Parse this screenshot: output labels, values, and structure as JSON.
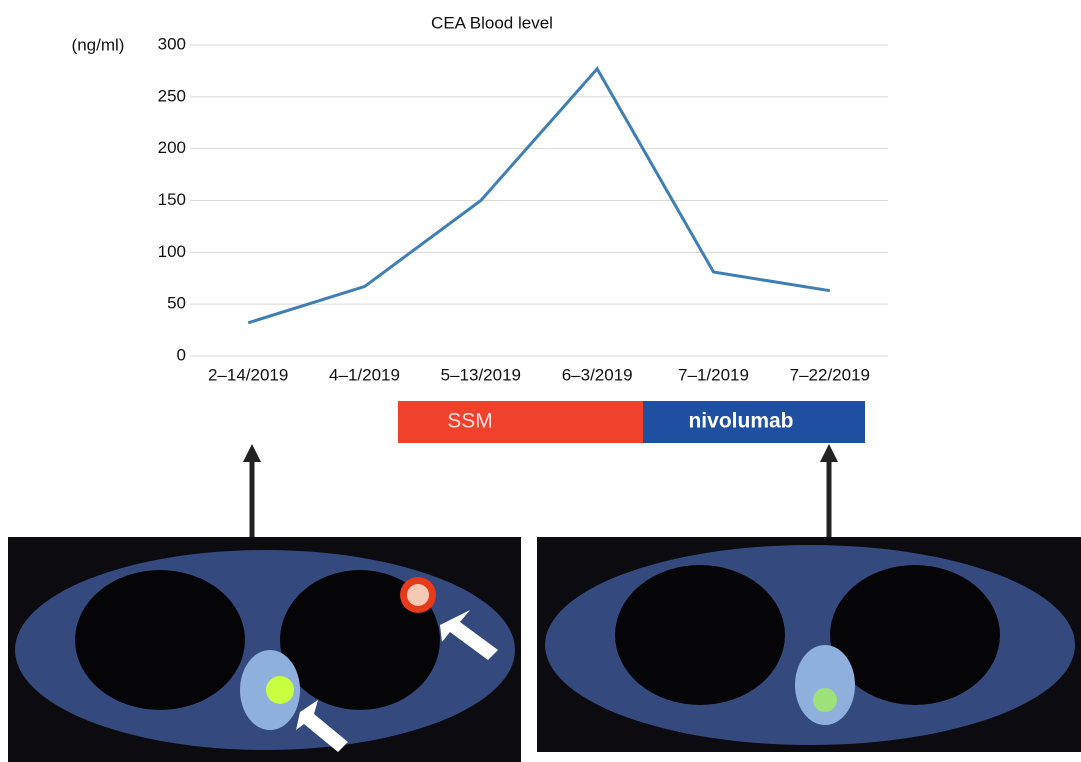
{
  "chart_data": {
    "type": "line",
    "title": "CEA Blood level",
    "y_label": "(ng/ml)",
    "categories": [
      "2–14/2019",
      "4–1/2019",
      "5–13/2019",
      "6–3/2019",
      "7–1/2019",
      "7–22/2019"
    ],
    "series": [
      {
        "name": "CEA",
        "color": "#3f7fb3",
        "values": [
          32,
          67,
          150,
          277,
          81,
          63
        ]
      }
    ],
    "ylim": [
      0,
      300
    ],
    "yticks": [
      0,
      50,
      100,
      150,
      200,
      250,
      300
    ],
    "grid": true,
    "treatments": [
      {
        "label": "SSM",
        "color": "#f0412c"
      },
      {
        "label": "nivolumab",
        "color": "#1f4fa0"
      }
    ]
  }
}
